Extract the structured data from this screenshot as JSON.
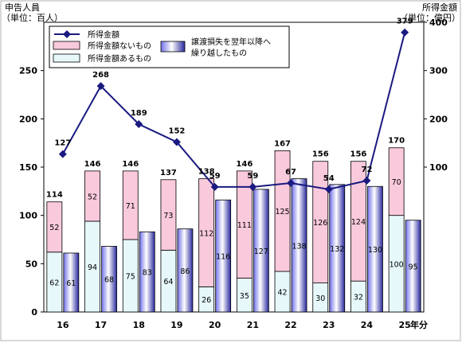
{
  "chart_data": {
    "type": "bar",
    "left_axis_title": "申告人員",
    "left_axis_unit": "（単位：百人）",
    "right_axis_title": "所得金額",
    "right_axis_unit": "（単位：億円）",
    "x_axis_suffix": "年分",
    "categories": [
      "16",
      "17",
      "18",
      "19",
      "20",
      "21",
      "22",
      "23",
      "24",
      "25"
    ],
    "left_axis": {
      "ylim": [
        0,
        300
      ],
      "ticks": [
        0,
        50,
        100,
        150,
        200,
        250
      ]
    },
    "right_axis": {
      "ylim": [
        -200,
        400
      ],
      "ticks": [
        100,
        200,
        300,
        400
      ]
    },
    "stack_totals": [
      114,
      146,
      146,
      137,
      138,
      146,
      167,
      156,
      156,
      170
    ],
    "series": [
      {
        "name": "所得金額あるもの",
        "kind": "stacked-bar-bottom",
        "axis": "left",
        "color": "#e6f8fa",
        "values": [
          62,
          94,
          75,
          64,
          26,
          35,
          42,
          30,
          32,
          100
        ]
      },
      {
        "name": "所得金額ないもの",
        "kind": "stacked-bar-top",
        "axis": "left",
        "color": "#f9c9dc",
        "values": [
          52,
          52,
          71,
          73,
          112,
          111,
          125,
          126,
          124,
          70
        ]
      },
      {
        "name": "譲渡損失を翌年以降へ繰り越したもの",
        "kind": "bar",
        "axis": "left",
        "color": "#4040c8",
        "values": [
          61,
          68,
          83,
          86,
          116,
          127,
          138,
          132,
          130,
          95
        ]
      },
      {
        "name": "所得金額",
        "kind": "line",
        "axis": "right",
        "color": "#1a1a80",
        "values": [
          127,
          268,
          189,
          152,
          59,
          59,
          67,
          54,
          72,
          379
        ]
      }
    ],
    "legend": {
      "placement": "top-left",
      "items": [
        {
          "label": "所得金額",
          "symbol": "line-diamond"
        },
        {
          "label": "所得金額ないもの",
          "symbol": "pink"
        },
        {
          "label": "所得金額あるもの",
          "symbol": "cyan"
        },
        {
          "label": "譲渡損失を翌年以降へ繰り越したもの",
          "lines": [
            "譲渡損失を翌年以降へ",
            "繰り越したもの"
          ],
          "symbol": "blue"
        }
      ]
    }
  }
}
